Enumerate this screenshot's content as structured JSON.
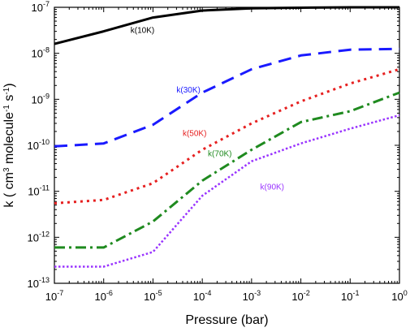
{
  "chart_data": {
    "type": "line",
    "title": "",
    "xlabel": "Pressure (bar)",
    "ylabel": "k ( cm3 molecule-1 s-1)",
    "x_scale": "log",
    "y_scale": "log",
    "xlim": [
      1e-07,
      1
    ],
    "ylim": [
      1e-13,
      1e-07
    ],
    "x_ticks": [
      {
        "value": 1e-07,
        "base": "10",
        "exp": "-7"
      },
      {
        "value": 1e-06,
        "base": "10",
        "exp": "-6"
      },
      {
        "value": 1e-05,
        "base": "10",
        "exp": "-5"
      },
      {
        "value": 0.0001,
        "base": "10",
        "exp": "-4"
      },
      {
        "value": 0.001,
        "base": "10",
        "exp": "-3"
      },
      {
        "value": 0.01,
        "base": "10",
        "exp": "-2"
      },
      {
        "value": 0.1,
        "base": "10",
        "exp": "-1"
      },
      {
        "value": 1,
        "base": "10",
        "exp": "0"
      }
    ],
    "y_ticks": [
      {
        "value": 1e-13,
        "base": "10",
        "exp": "-13"
      },
      {
        "value": 1e-12,
        "base": "10",
        "exp": "-12"
      },
      {
        "value": 1e-11,
        "base": "10",
        "exp": "-11"
      },
      {
        "value": 1e-10,
        "base": "10",
        "exp": "-10"
      },
      {
        "value": 1e-09,
        "base": "10",
        "exp": "-9"
      },
      {
        "value": 1e-08,
        "base": "10",
        "exp": "-8"
      },
      {
        "value": 1e-07,
        "base": "10",
        "exp": "-7"
      }
    ],
    "series": [
      {
        "name": "k(10K)",
        "color": "#000000",
        "dash": "solid",
        "x": [
          1e-07,
          1e-06,
          1e-05,
          0.0001,
          0.001,
          0.01,
          0.1,
          1
        ],
        "y": [
          1.6e-08,
          3e-08,
          6e-08,
          8.5e-08,
          9.5e-08,
          9.8e-08,
          1e-07,
          1e-07
        ],
        "label_at": [
          3.5e-06,
          2.8e-08
        ]
      },
      {
        "name": "k(30K)",
        "color": "#1a1aff",
        "dash": "dash",
        "x": [
          1e-07,
          1e-06,
          1e-05,
          0.0001,
          0.001,
          0.01,
          0.1,
          1
        ],
        "y": [
          9.5e-11,
          1.1e-10,
          2.8e-10,
          1.4e-09,
          4.5e-09,
          9e-09,
          1.2e-08,
          1.25e-08
        ],
        "label_at": [
          3e-05,
          1.4e-09
        ]
      },
      {
        "name": "k(50K)",
        "color": "#e62020",
        "dash": "dot",
        "x": [
          1e-07,
          1e-06,
          1e-05,
          0.0001,
          0.001,
          0.01,
          0.1,
          1
        ],
        "y": [
          5.5e-12,
          6.5e-12,
          1.5e-11,
          8e-11,
          3e-10,
          9e-10,
          2.2e-09,
          4.5e-09
        ],
        "label_at": [
          4e-05,
          1.6e-10
        ]
      },
      {
        "name": "k(70K)",
        "color": "#1f8a1f",
        "dash": "dashdot",
        "x": [
          1e-07,
          1e-06,
          1e-05,
          0.0001,
          0.001,
          0.01,
          0.1,
          1
        ],
        "y": [
          6e-13,
          6e-13,
          2.2e-12,
          1.7e-11,
          8e-11,
          3.2e-10,
          5.5e-10,
          1.4e-09
        ],
        "label_at": [
          0.00013,
          5.8e-11
        ]
      },
      {
        "name": "k(90K)",
        "color": "#9933ff",
        "dash": "densedot",
        "x": [
          1e-07,
          1e-06,
          1e-05,
          0.0001,
          0.001,
          0.01,
          0.1,
          1
        ],
        "y": [
          2.3e-13,
          2.3e-13,
          4.8e-13,
          8e-12,
          4.5e-11,
          1.1e-10,
          2.3e-10,
          4.5e-10
        ],
        "label_at": [
          0.0015,
          1.1e-11
        ]
      }
    ]
  }
}
